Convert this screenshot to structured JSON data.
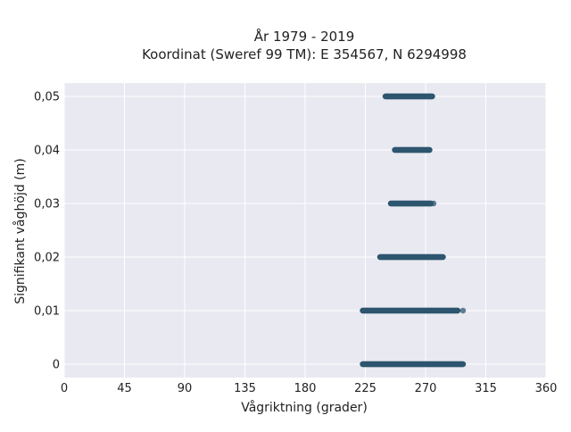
{
  "chart_data": {
    "type": "scatter",
    "title_lines": [
      "År 1979 - 2019",
      "Koordinat (Sweref 99 TM): E 354567, N 6294998"
    ],
    "xlabel": "Vågriktning (grader)",
    "ylabel": "Signifikant våghöjd (m)",
    "xlim": [
      0,
      360
    ],
    "ylim": [
      -0.0025,
      0.0525
    ],
    "x_ticks": [
      0,
      45,
      90,
      135,
      180,
      225,
      270,
      315,
      360
    ],
    "x_tick_labels": [
      "0",
      "45",
      "90",
      "135",
      "180",
      "225",
      "270",
      "315",
      "360"
    ],
    "y_ticks": [
      0,
      0.01,
      0.02,
      0.03,
      0.04,
      0.05
    ],
    "y_tick_labels": [
      "0",
      "0,01",
      "0,02",
      "0,03",
      "0,04",
      "0,05"
    ],
    "grid": true,
    "background": "#e9e9f1",
    "grid_color": "#ffffff",
    "marker_color": "#2e566f",
    "series": [
      {
        "bands": [
          {
            "y": 0.0,
            "x_range": [
              223,
              298
            ],
            "outliers": []
          },
          {
            "y": 0.01,
            "x_range": [
              223,
              294
            ],
            "outliers": [
              298
            ]
          },
          {
            "y": 0.02,
            "x_range": [
              236,
              283
            ],
            "outliers": []
          },
          {
            "y": 0.03,
            "x_range": [
              244,
              274
            ],
            "outliers": [
              276
            ]
          },
          {
            "y": 0.04,
            "x_range": [
              247,
              273
            ],
            "outliers": []
          },
          {
            "y": 0.05,
            "x_range": [
              240,
              275
            ],
            "outliers": []
          }
        ]
      }
    ]
  }
}
